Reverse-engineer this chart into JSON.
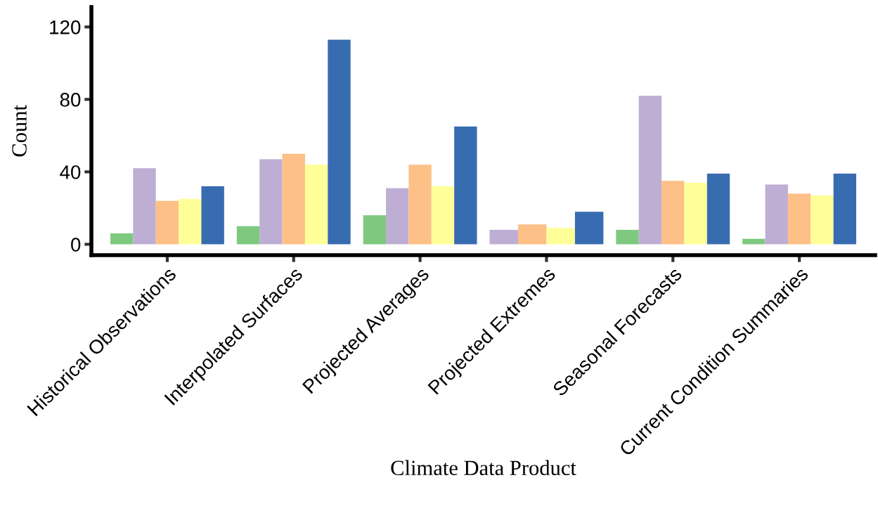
{
  "chart_data": {
    "type": "bar",
    "xlabel": "Climate Data Product",
    "ylabel": "Count",
    "categories": [
      "Historical Observations",
      "Interpolated Surfaces",
      "Projected Averages",
      "Projected Extremes",
      "Seasonal Forecasts",
      "Current Condition Summaries"
    ],
    "series": [
      {
        "color": "#7fc97f",
        "values": [
          6,
          10,
          16,
          null,
          8,
          3
        ]
      },
      {
        "color": "#beaed4",
        "values": [
          42,
          47,
          31,
          8,
          82,
          33
        ]
      },
      {
        "color": "#fdc086",
        "values": [
          24,
          50,
          44,
          11,
          35,
          28
        ]
      },
      {
        "color": "#ffff99",
        "values": [
          25,
          44,
          32,
          9,
          34,
          27
        ]
      },
      {
        "color": "#386cb0",
        "values": [
          32,
          113,
          65,
          18,
          39,
          39
        ]
      }
    ],
    "ylim": [
      -6,
      131
    ],
    "yticks": [
      0,
      40,
      80,
      120
    ],
    "grid": false,
    "legend": false
  }
}
